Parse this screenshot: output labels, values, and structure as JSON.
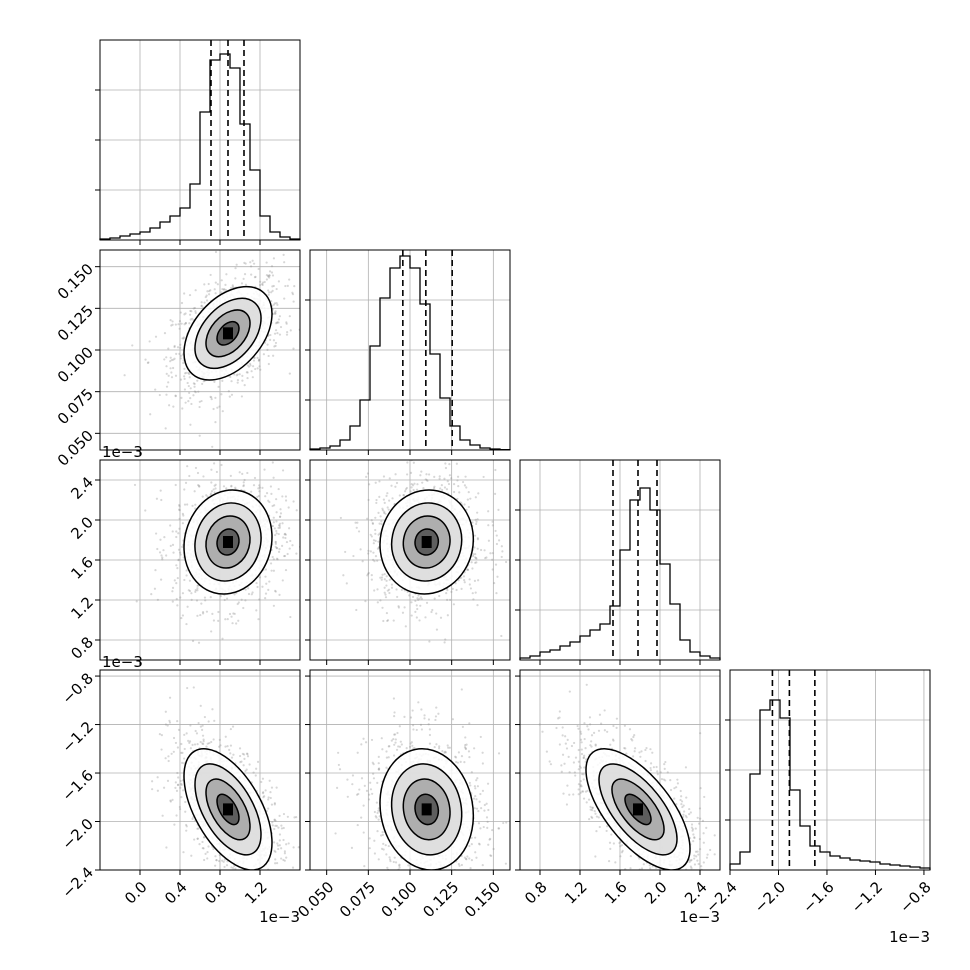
{
  "chart_data": {
    "type": "corner",
    "grid": true,
    "parameters": [
      {
        "range": [
          -0.0004,
          0.0016
        ],
        "quantiles": [
          0.00071,
          0.00088,
          0.00104
        ],
        "ticks": [
          {
            "v": 0.0,
            "label": "0.0"
          },
          {
            "v": 0.0004,
            "label": "0.4"
          },
          {
            "v": 0.0008,
            "label": "0.8"
          },
          {
            "v": 0.0012,
            "label": "1.2"
          }
        ],
        "offset": "1e−3",
        "hist": [
          0.005,
          0.01,
          0.02,
          0.03,
          0.04,
          0.06,
          0.09,
          0.12,
          0.16,
          0.28,
          0.64,
          0.9,
          0.93,
          0.86,
          0.58,
          0.35,
          0.12,
          0.04,
          0.015,
          0.005
        ]
      },
      {
        "range": [
          0.04,
          0.16
        ],
        "quantiles": [
          0.0957,
          0.1095,
          0.1253
        ],
        "ticks": [
          {
            "v": 0.05,
            "label": "0.050"
          },
          {
            "v": 0.075,
            "label": "0.075"
          },
          {
            "v": 0.1,
            "label": "0.100"
          },
          {
            "v": 0.125,
            "label": "0.125"
          },
          {
            "v": 0.15,
            "label": "0.150"
          }
        ],
        "offset": "",
        "hist": [
          0.005,
          0.01,
          0.02,
          0.05,
          0.12,
          0.25,
          0.52,
          0.76,
          0.91,
          0.97,
          0.91,
          0.73,
          0.48,
          0.26,
          0.12,
          0.05,
          0.025,
          0.01,
          0.005,
          0.002
        ]
      },
      {
        "range": [
          0.0006,
          0.0026
        ],
        "quantiles": [
          0.00153,
          0.00178,
          0.00197
        ],
        "ticks": [
          {
            "v": 0.0008,
            "label": "0.8"
          },
          {
            "v": 0.0012,
            "label": "1.2"
          },
          {
            "v": 0.0016,
            "label": "1.6"
          },
          {
            "v": 0.002,
            "label": "2.0"
          },
          {
            "v": 0.0024,
            "label": "2.4"
          }
        ],
        "offset": "1e−3",
        "hist": [
          0.01,
          0.02,
          0.04,
          0.05,
          0.07,
          0.09,
          0.12,
          0.15,
          0.18,
          0.27,
          0.55,
          0.8,
          0.86,
          0.75,
          0.48,
          0.28,
          0.1,
          0.04,
          0.02,
          0.01
        ]
      },
      {
        "range": [
          -0.0024,
          -0.00075
        ],
        "quantiles": [
          -0.00205,
          -0.00191,
          -0.0017
        ],
        "ticks": [
          {
            "v": -0.0024,
            "label": "−2.4"
          },
          {
            "v": -0.002,
            "label": "−2.0"
          },
          {
            "v": -0.0016,
            "label": "−1.6"
          },
          {
            "v": -0.0012,
            "label": "−1.2"
          },
          {
            "v": -0.0008,
            "label": "−0.8"
          }
        ],
        "offset": "1e−3",
        "hist": [
          0.03,
          0.09,
          0.48,
          0.8,
          0.85,
          0.76,
          0.4,
          0.22,
          0.12,
          0.09,
          0.07,
          0.06,
          0.05,
          0.045,
          0.04,
          0.03,
          0.025,
          0.02,
          0.015,
          0.01
        ]
      }
    ],
    "pairs": [
      {
        "row": 1,
        "col": 0,
        "mean": [
          0.00088,
          0.11
        ],
        "sd": [
          0.00022,
          0.014
        ],
        "rho": 0.42
      },
      {
        "row": 2,
        "col": 0,
        "mean": [
          0.00088,
          0.00178
        ],
        "sd": [
          0.00022,
          0.00026
        ],
        "rho": 0.1
      },
      {
        "row": 2,
        "col": 1,
        "mean": [
          0.11,
          0.00178
        ],
        "sd": [
          0.014,
          0.00026
        ],
        "rho": 0.05
      },
      {
        "row": 3,
        "col": 0,
        "mean": [
          0.00088,
          -0.0019
        ],
        "sd": [
          0.00022,
          0.00025
        ],
        "rho": -0.55
      },
      {
        "row": 3,
        "col": 1,
        "mean": [
          0.11,
          -0.0019
        ],
        "sd": [
          0.014,
          0.00025
        ],
        "rho": -0.1
      },
      {
        "row": 3,
        "col": 2,
        "mean": [
          0.00178,
          -0.0019
        ],
        "sd": [
          0.00026,
          0.00025
        ],
        "rho": -0.65
      }
    ]
  }
}
